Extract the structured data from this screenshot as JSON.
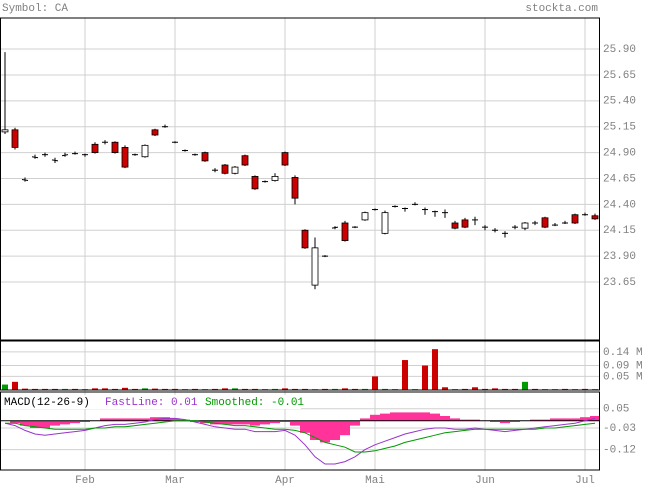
{
  "chart_data": [
    {
      "type": "candlestick",
      "title": "Symbol: CA",
      "source": "stockta.com",
      "categories": [
        null,
        null,
        null,
        null,
        null,
        null,
        null,
        null,
        "Feb",
        null,
        null,
        null,
        null,
        null,
        null,
        null,
        null,
        "Mar",
        null,
        null,
        null,
        null,
        null,
        null,
        null,
        null,
        null,
        null,
        "Apr",
        null,
        null,
        null,
        null,
        null,
        null,
        null,
        null,
        "Mai",
        null,
        null,
        null,
        null,
        null,
        null,
        null,
        null,
        null,
        null,
        "Jun",
        null,
        null,
        null,
        null,
        null,
        null,
        null,
        null,
        null,
        "Jul",
        null
      ],
      "open": [
        25.1,
        25.12,
        24.64,
        24.86,
        24.88,
        24.83,
        24.87,
        24.89,
        24.88,
        24.98,
        25.0,
        25.0,
        24.95,
        24.88,
        24.86,
        25.12,
        25.15,
        25.0,
        24.92,
        24.88,
        24.9,
        24.73,
        24.78,
        24.7,
        24.87,
        24.67,
        24.62,
        24.63,
        24.9,
        24.66,
        24.15,
        23.62,
        23.9,
        24.17,
        24.22,
        24.18,
        24.25,
        24.35,
        24.12,
        24.38,
        24.36,
        24.4,
        24.35,
        24.33,
        24.32,
        24.22,
        24.25,
        24.25,
        24.18,
        24.15,
        24.12,
        24.18,
        24.17,
        24.22,
        24.27,
        24.2,
        24.22,
        24.3,
        24.3,
        24.29
      ],
      "high": [
        25.87,
        25.14,
        24.66,
        24.88,
        24.9,
        24.85,
        24.9,
        24.91,
        24.89,
        25.0,
        25.02,
        25.01,
        24.97,
        24.89,
        24.98,
        25.13,
        25.17,
        25.01,
        24.93,
        24.89,
        24.91,
        24.75,
        24.79,
        24.77,
        24.88,
        24.68,
        24.63,
        24.7,
        24.91,
        24.68,
        24.16,
        24.08,
        23.91,
        24.19,
        24.24,
        24.19,
        24.33,
        24.36,
        24.34,
        24.39,
        24.37,
        24.42,
        24.37,
        24.34,
        24.35,
        24.24,
        24.27,
        24.28,
        24.2,
        24.17,
        24.14,
        24.2,
        24.23,
        24.24,
        24.28,
        24.22,
        24.24,
        24.31,
        24.32,
        24.31
      ],
      "low": [
        25.08,
        24.93,
        24.62,
        24.84,
        24.86,
        24.8,
        24.86,
        24.88,
        24.86,
        24.89,
        24.98,
        24.89,
        24.75,
        24.87,
        24.85,
        25.06,
        25.14,
        24.99,
        24.91,
        24.87,
        24.81,
        24.71,
        24.69,
        24.69,
        24.77,
        24.54,
        24.61,
        24.62,
        24.77,
        24.4,
        23.97,
        23.58,
        23.89,
        24.16,
        24.04,
        24.17,
        24.24,
        24.34,
        24.11,
        24.37,
        24.33,
        24.39,
        24.3,
        24.28,
        24.27,
        24.16,
        24.17,
        24.2,
        24.15,
        24.13,
        24.08,
        24.16,
        24.15,
        24.2,
        24.17,
        24.19,
        24.21,
        24.21,
        24.29,
        24.25
      ],
      "close": [
        25.12,
        24.95,
        24.63,
        24.85,
        24.88,
        24.82,
        24.88,
        24.89,
        24.88,
        24.9,
        25.0,
        24.9,
        24.76,
        24.88,
        24.97,
        25.07,
        25.15,
        25.0,
        24.92,
        24.88,
        24.82,
        24.73,
        24.7,
        24.76,
        24.78,
        24.55,
        24.62,
        24.67,
        24.78,
        24.46,
        23.98,
        23.98,
        23.9,
        24.18,
        24.05,
        24.18,
        24.32,
        24.35,
        24.32,
        24.38,
        24.36,
        24.4,
        24.35,
        24.33,
        24.32,
        24.17,
        24.18,
        24.25,
        24.18,
        24.15,
        24.12,
        24.18,
        24.22,
        24.22,
        24.18,
        24.2,
        24.22,
        24.22,
        24.3,
        24.26
      ],
      "up_color": "#ffffff",
      "down_color": "#cc0000",
      "ylim": [
        23.09,
        26.2
      ],
      "yticks": [
        {
          "value": 23.9,
          "label": "23.90"
        },
        23.65,
        24.15,
        {
          "value": 24.4,
          "label": "24.40"
        },
        24.65,
        {
          "value": 24.9,
          "label": "24.90"
        },
        25.15,
        {
          "value": 25.4,
          "label": "25.40"
        },
        25.65,
        {
          "value": 25.9,
          "label": "25.90"
        }
      ],
      "grid": true
    },
    {
      "type": "bar",
      "values": [
        0.02,
        0.03,
        0.005,
        0.004,
        0.004,
        0.004,
        0.004,
        0.004,
        0.003,
        0.006,
        0.006,
        0.004,
        0.008,
        0.004,
        0.006,
        0.005,
        0.004,
        0.004,
        0.003,
        0.004,
        0.003,
        0.004,
        0.006,
        0.006,
        0.004,
        0.004,
        0.003,
        0.004,
        0.006,
        0.004,
        0.004,
        0.003,
        0.004,
        0.004,
        0.006,
        0.004,
        0.004,
        0.05,
        0.004,
        0.003,
        0.11,
        0.003,
        0.09,
        0.15,
        0.01,
        0.003,
        0.004,
        0.01,
        0.004,
        0.006,
        0.004,
        0.004,
        0.03,
        0.004,
        0.003,
        0.003,
        0.004,
        0.003,
        0.004,
        0.003
      ],
      "up_color": "#009900",
      "down_color": "#cc0000",
      "ylim": [
        0,
        0.18
      ],
      "yticks": [
        {
          "value": 0.05,
          "label": "0.05 M"
        },
        {
          "value": 0.09,
          "label": "0.09 M"
        },
        {
          "value": 0.14,
          "label": "0.14 M"
        }
      ]
    },
    {
      "type": "macd",
      "title": "MACD(12-26-9)",
      "series": [
        {
          "name": "FastLine: 0.01",
          "color": "#9933cc",
          "values": [
            -0.01,
            -0.02,
            -0.04,
            -0.055,
            -0.06,
            -0.055,
            -0.05,
            -0.045,
            -0.04,
            -0.03,
            -0.02,
            -0.015,
            -0.015,
            -0.01,
            -0.005,
            0.005,
            0.01,
            0.01,
            0.005,
            -0.005,
            -0.015,
            -0.025,
            -0.03,
            -0.035,
            -0.035,
            -0.045,
            -0.045,
            -0.045,
            -0.04,
            -0.06,
            -0.1,
            -0.15,
            -0.18,
            -0.18,
            -0.17,
            -0.15,
            -0.12,
            -0.1,
            -0.085,
            -0.07,
            -0.055,
            -0.045,
            -0.035,
            -0.03,
            -0.03,
            -0.035,
            -0.035,
            -0.03,
            -0.035,
            -0.04,
            -0.045,
            -0.04,
            -0.035,
            -0.03,
            -0.025,
            -0.02,
            -0.015,
            -0.01,
            0.0,
            0.01
          ]
        },
        {
          "name": "Smoothed: -0.01",
          "color": "#009900",
          "values": [
            -0.01,
            -0.01,
            -0.02,
            -0.025,
            -0.03,
            -0.035,
            -0.035,
            -0.035,
            -0.035,
            -0.03,
            -0.03,
            -0.025,
            -0.025,
            -0.02,
            -0.015,
            -0.01,
            -0.005,
            0.0,
            0.0,
            0.0,
            -0.005,
            -0.01,
            -0.015,
            -0.02,
            -0.02,
            -0.025,
            -0.03,
            -0.035,
            -0.035,
            -0.04,
            -0.05,
            -0.07,
            -0.09,
            -0.1,
            -0.11,
            -0.13,
            -0.13,
            -0.125,
            -0.115,
            -0.105,
            -0.09,
            -0.08,
            -0.07,
            -0.06,
            -0.05,
            -0.045,
            -0.04,
            -0.035,
            -0.035,
            -0.035,
            -0.035,
            -0.035,
            -0.035,
            -0.035,
            -0.03,
            -0.03,
            -0.025,
            -0.02,
            -0.015,
            -0.01
          ]
        }
      ],
      "histogram": {
        "color": "#ff3399",
        "values": [
          0,
          -0.01,
          -0.02,
          -0.03,
          -0.03,
          -0.02,
          -0.015,
          -0.01,
          -0.005,
          0,
          0.01,
          0.01,
          0.01,
          0.01,
          0.01,
          0.015,
          0.015,
          0.01,
          0.005,
          -0.005,
          -0.01,
          -0.015,
          -0.015,
          -0.015,
          -0.015,
          -0.02,
          -0.015,
          -0.01,
          -0.005,
          -0.02,
          -0.05,
          -0.08,
          -0.09,
          -0.08,
          -0.06,
          -0.02,
          0.01,
          0.025,
          0.03,
          0.035,
          0.035,
          0.035,
          0.035,
          0.03,
          0.02,
          0.01,
          0.005,
          0.005,
          0,
          -0.005,
          -0.01,
          -0.005,
          0,
          0.005,
          0.005,
          0.01,
          0.01,
          0.01,
          0.015,
          0.02
        ]
      },
      "ylim": [
        -0.205,
        0.12
      ],
      "yticks": [
        -0.12,
        -0.03,
        0.05
      ]
    }
  ]
}
